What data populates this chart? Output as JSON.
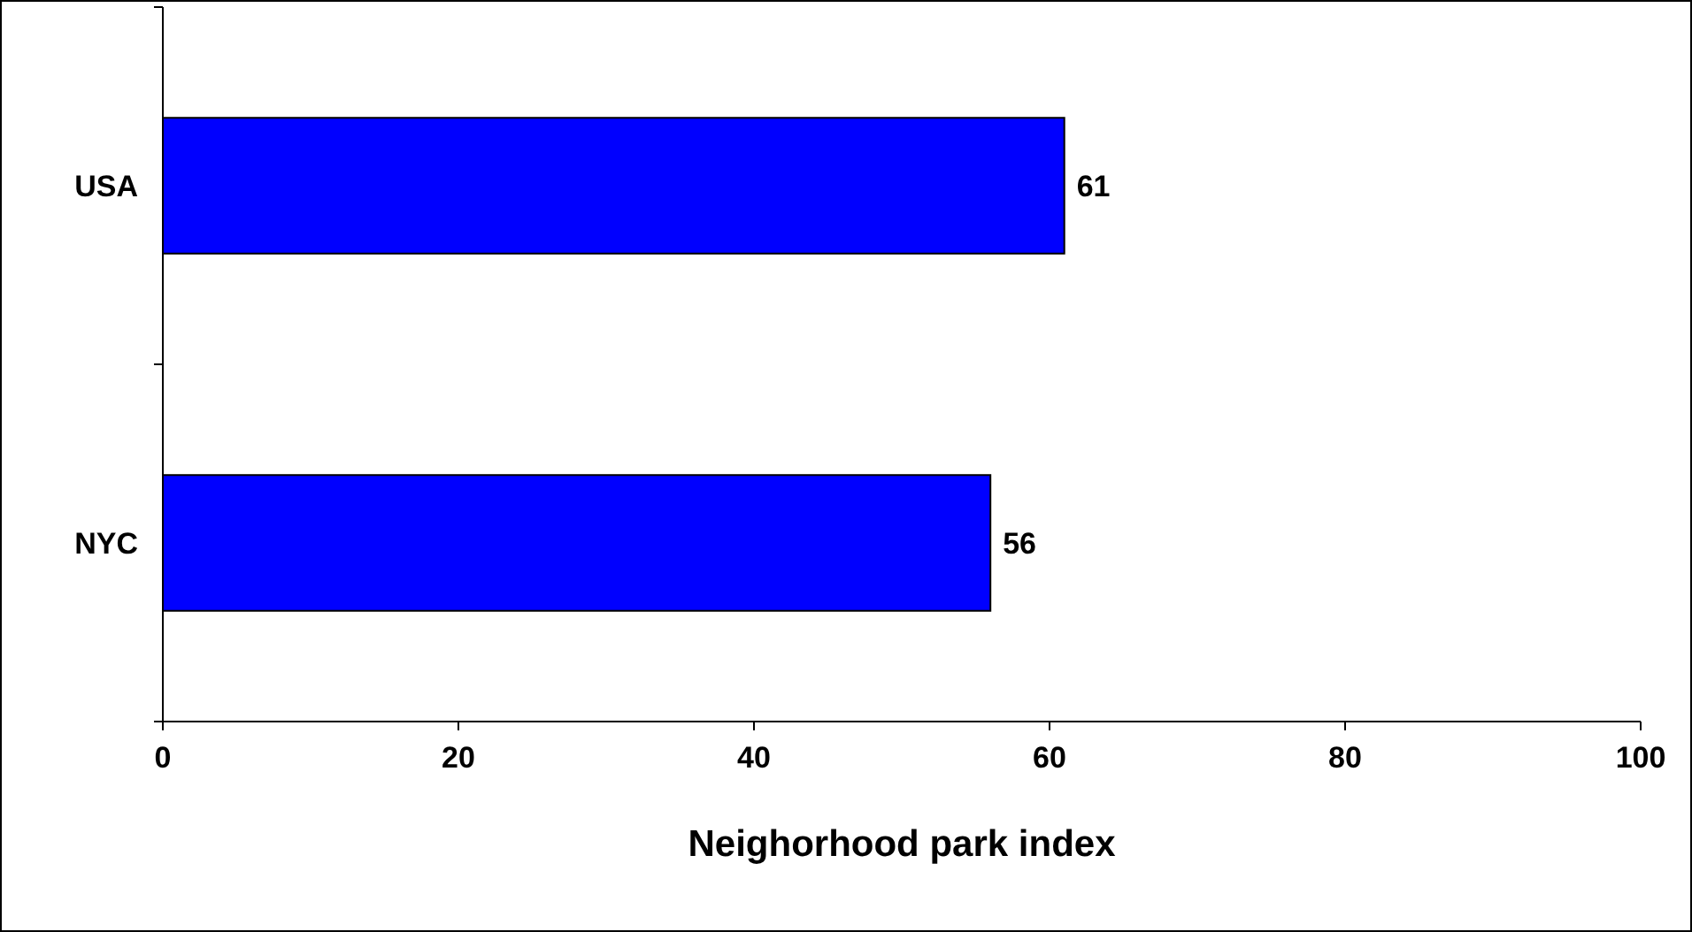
{
  "chart_data": {
    "type": "bar",
    "orientation": "horizontal",
    "categories": [
      "USA",
      "NYC"
    ],
    "values": [
      61,
      56
    ],
    "color": "#0000ff",
    "xlabel": "Neighorhood park index",
    "xlim": [
      0,
      100
    ],
    "xticks": [
      0,
      20,
      40,
      60,
      80,
      100
    ],
    "data_labels": true,
    "grid": false
  }
}
